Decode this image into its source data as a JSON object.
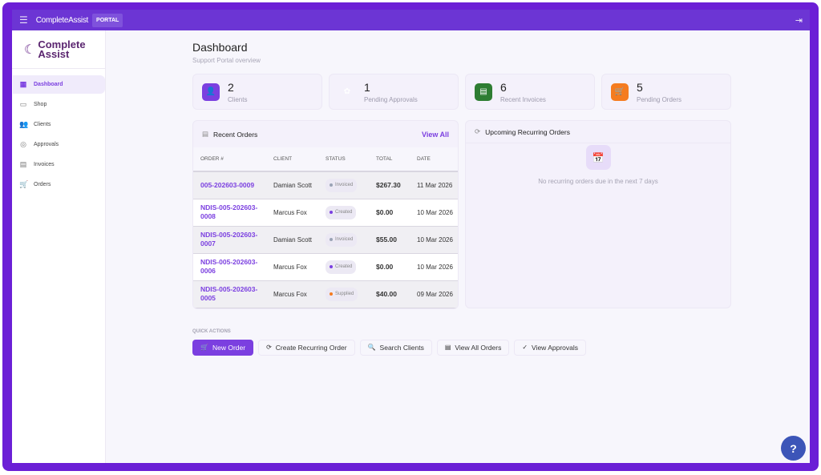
{
  "topbar": {
    "brand": "CompleteAssist",
    "badge": "PORTAL",
    "menu_icon": "menu-collapse-icon",
    "logout_icon": "logout-icon"
  },
  "sidebar": {
    "logo_line1": "Complete",
    "logo_line2": "Assist",
    "items": [
      {
        "label": "Dashboard",
        "icon": "grid-icon",
        "active": true
      },
      {
        "label": "Shop",
        "icon": "store-icon"
      },
      {
        "label": "Clients",
        "icon": "users-icon"
      },
      {
        "label": "Approvals",
        "icon": "check-circle-icon"
      },
      {
        "label": "Invoices",
        "icon": "receipt-icon"
      },
      {
        "label": "Orders",
        "icon": "cart-icon"
      }
    ]
  },
  "page": {
    "title": "Dashboard",
    "subtitle": "Support Portal overview"
  },
  "stats": [
    {
      "value": "2",
      "label": "Clients",
      "color": "#7b3fe0"
    },
    {
      "value": "1",
      "label": "Pending Approvals",
      "color": "#f4f1fb"
    },
    {
      "value": "6",
      "label": "Recent Invoices",
      "color": "#2e7d32"
    },
    {
      "value": "5",
      "label": "Pending Orders",
      "color": "#f57c1f"
    }
  ],
  "recent_orders": {
    "title": "Recent Orders",
    "view_all": "View All",
    "columns": [
      "ORDER #",
      "CLIENT",
      "STATUS",
      "TOTAL",
      "DATE"
    ],
    "rows": [
      {
        "order": "005-202603-0009",
        "client": "Damian Scott",
        "status": "Invoiced",
        "total": "$267.30",
        "date": "11 Mar 2026"
      },
      {
        "order": "NDIS-005-202603-0008",
        "client": "Marcus Fox",
        "status": "Created",
        "total": "$0.00",
        "date": "10 Mar 2026"
      },
      {
        "order": "NDIS-005-202603-0007",
        "client": "Damian Scott",
        "status": "Invoiced",
        "total": "$55.00",
        "date": "10 Mar 2026"
      },
      {
        "order": "NDIS-005-202603-0006",
        "client": "Marcus Fox",
        "status": "Created",
        "total": "$0.00",
        "date": "10 Mar 2026"
      },
      {
        "order": "NDIS-005-202603-0005",
        "client": "Marcus Fox",
        "status": "Supplied",
        "total": "$40.00",
        "date": "09 Mar 2026"
      }
    ]
  },
  "status_colors": {
    "Invoiced": "#9aa3b5",
    "Created": "#7b3fe0",
    "Supplied": "#f57c1f"
  },
  "recurring": {
    "title": "Upcoming Recurring Orders",
    "empty": "No recurring orders due in the next 7 days"
  },
  "quick_actions": {
    "label": "QUICK ACTIONS",
    "buttons": [
      {
        "label": "New Order",
        "icon": "cart-plus-icon",
        "glyph": "🛒"
      },
      {
        "label": "Create Recurring Order",
        "icon": "refresh-icon",
        "glyph": "⟳"
      },
      {
        "label": "Search Clients",
        "icon": "search-icon",
        "glyph": "🔍"
      },
      {
        "label": "View All Orders",
        "icon": "list-icon",
        "glyph": "▤"
      },
      {
        "label": "View Approvals",
        "icon": "check-circle-icon",
        "glyph": "✓"
      }
    ]
  },
  "help": "?"
}
